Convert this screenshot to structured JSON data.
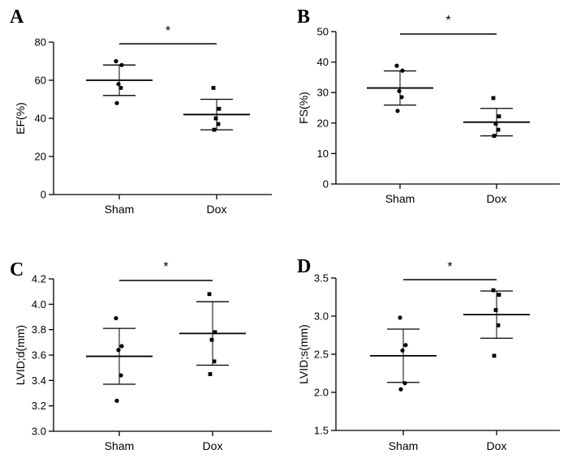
{
  "chart_data": [
    {
      "panel": "A",
      "type": "scatter",
      "ylabel": "EF(%)",
      "categories": [
        "Sham",
        "Dox"
      ],
      "ylim": [
        0,
        80
      ],
      "yticks": [
        0,
        20,
        40,
        60,
        80
      ],
      "ytick_labels": [
        "0",
        "20",
        "40",
        "60",
        "80"
      ],
      "significance": "*",
      "groups": [
        {
          "name": "Sham",
          "marker": "circle",
          "values": [
            70,
            68,
            58,
            56,
            48
          ],
          "mean": 60,
          "sd_low": 52,
          "sd_high": 68
        },
        {
          "name": "Dox",
          "marker": "square",
          "values": [
            56,
            45,
            40,
            37,
            34
          ],
          "mean": 42,
          "sd_low": 34,
          "sd_high": 50
        }
      ]
    },
    {
      "panel": "B",
      "type": "scatter",
      "ylabel": "FS(%)",
      "categories": [
        "Sham",
        "Dox"
      ],
      "ylim": [
        0,
        50
      ],
      "yticks": [
        0,
        10,
        20,
        30,
        40,
        50
      ],
      "ytick_labels": [
        "0",
        "10",
        "20",
        "30",
        "40",
        "50"
      ],
      "significance": "*",
      "groups": [
        {
          "name": "Sham",
          "marker": "circle",
          "values": [
            38.8,
            37.2,
            30.5,
            28.5,
            24.0
          ],
          "mean": 31.5,
          "sd_low": 25.9,
          "sd_high": 37.1
        },
        {
          "name": "Dox",
          "marker": "square",
          "values": [
            28.2,
            22.2,
            19.8,
            17.8,
            15.8
          ],
          "mean": 20.3,
          "sd_low": 15.8,
          "sd_high": 24.8
        }
      ]
    },
    {
      "panel": "C",
      "type": "scatter",
      "ylabel": "LVID;d(mm)",
      "categories": [
        "Sham",
        "Dox"
      ],
      "ylim": [
        3.0,
        4.2
      ],
      "yticks": [
        3.0,
        3.2,
        3.4,
        3.6,
        3.8,
        4.0,
        4.2
      ],
      "ytick_labels": [
        "3.0",
        "3.2",
        "3.4",
        "3.6",
        "3.8",
        "4.0",
        "4.2"
      ],
      "significance": "*",
      "groups": [
        {
          "name": "Sham",
          "marker": "circle",
          "values": [
            3.89,
            3.67,
            3.64,
            3.44,
            3.24
          ],
          "mean": 3.59,
          "sd_low": 3.37,
          "sd_high": 3.81
        },
        {
          "name": "Dox",
          "marker": "square",
          "values": [
            4.08,
            3.78,
            3.72,
            3.55,
            3.45
          ],
          "mean": 3.77,
          "sd_low": 3.52,
          "sd_high": 4.02
        }
      ]
    },
    {
      "panel": "D",
      "type": "scatter",
      "ylabel": "LVID;s(mm)",
      "categories": [
        "Sham",
        "Dox"
      ],
      "ylim": [
        1.5,
        3.5
      ],
      "yticks": [
        1.5,
        2.0,
        2.5,
        3.0,
        3.5
      ],
      "ytick_labels": [
        "1.5",
        "2.0",
        "2.5",
        "3.0",
        "3.5"
      ],
      "significance": "*",
      "groups": [
        {
          "name": "Sham",
          "marker": "circle",
          "values": [
            2.98,
            2.62,
            2.55,
            2.12,
            2.04
          ],
          "mean": 2.48,
          "sd_low": 2.13,
          "sd_high": 2.83
        },
        {
          "name": "Dox",
          "marker": "square",
          "values": [
            3.34,
            3.28,
            3.08,
            2.88,
            2.48
          ],
          "mean": 3.02,
          "sd_low": 2.71,
          "sd_high": 3.33
        }
      ]
    }
  ]
}
